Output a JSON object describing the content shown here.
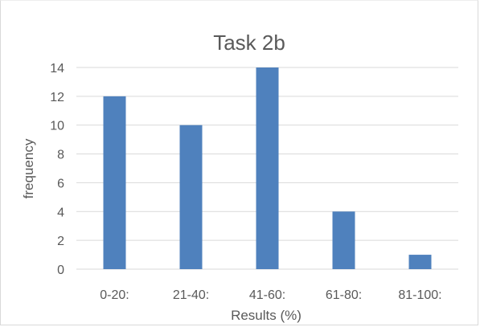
{
  "chart_data": {
    "type": "bar",
    "title": "Task 2b",
    "xlabel": "Results (%)",
    "ylabel": "frequency",
    "categories": [
      "0-20:",
      "21-40:",
      "41-60:",
      "61-80:",
      "81-100:"
    ],
    "values": [
      12,
      10,
      14,
      4,
      1
    ],
    "ylim": [
      0,
      14
    ],
    "yticks": [
      "0",
      "2",
      "4",
      "6",
      "8",
      "10",
      "12",
      "14"
    ],
    "grid": true,
    "bar_color": "#4f81bd",
    "grid_color": "#d9d9d9"
  }
}
